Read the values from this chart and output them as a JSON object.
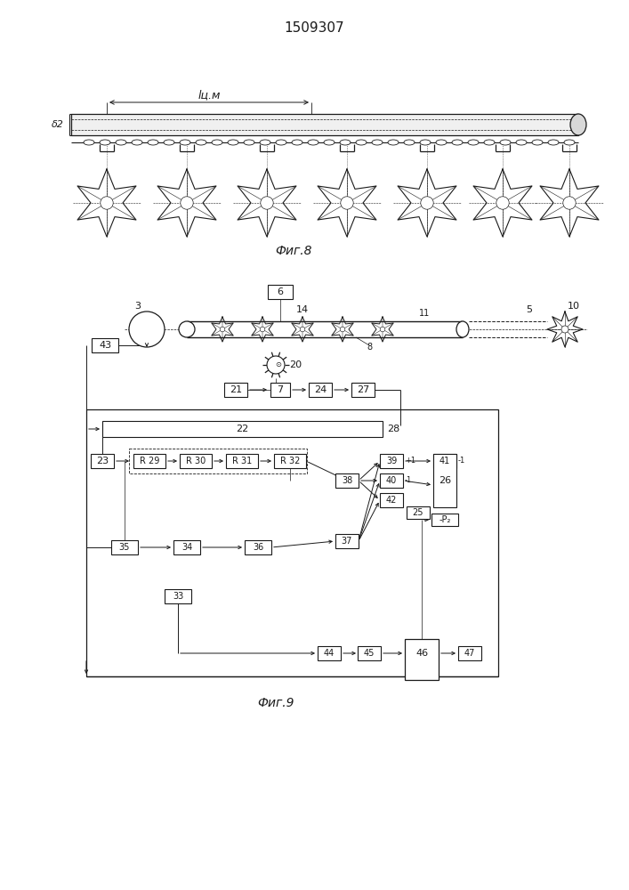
{
  "title": "1509307",
  "fig8_label": "Фиг.8",
  "fig9_label": "Фиг.9",
  "dim_label": "lц.м",
  "dim_label2": "δ2",
  "bg_color": "#ffffff",
  "lc": "#1a1a1a"
}
